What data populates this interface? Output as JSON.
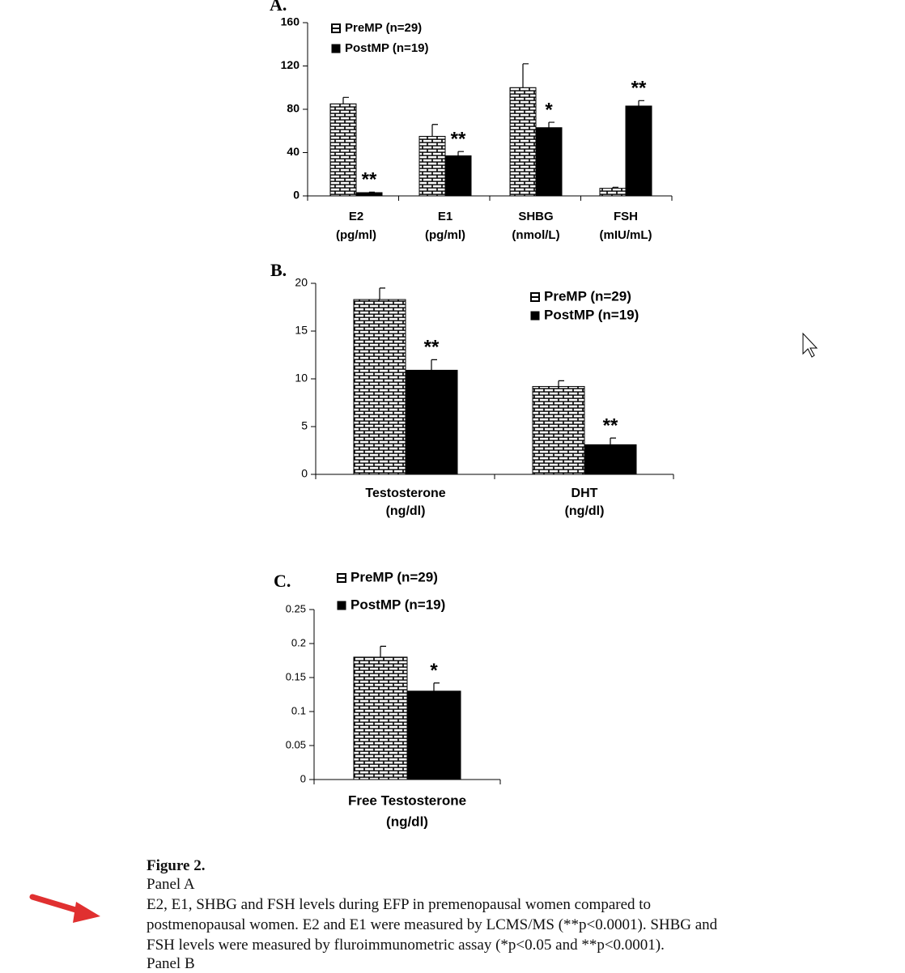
{
  "chart_data": [
    {
      "type": "bar",
      "title": "A.",
      "legend": "upper left",
      "categories": [
        [
          "E2",
          "(pg/ml)"
        ],
        [
          "E1",
          "(pg/ml)"
        ],
        [
          "SHBG",
          "(nmol/L)"
        ],
        [
          "FSH",
          "(mIU/mL)"
        ]
      ],
      "series": [
        {
          "name": "PreMP (n=29)",
          "color": "#000000",
          "pattern": "brick",
          "values": [
            85,
            55,
            100,
            7
          ],
          "errors": [
            6,
            11,
            22,
            1
          ]
        },
        {
          "name": "PostMP (n=19)",
          "color": "#000000",
          "values": [
            3,
            37,
            63,
            83
          ],
          "errors": [
            0.5,
            4,
            5,
            5
          ],
          "sig_labels": [
            "**",
            "**",
            "*",
            "**"
          ]
        }
      ],
      "ylim": [
        0,
        160
      ],
      "yticks": [
        0,
        40,
        80,
        120,
        160
      ]
    },
    {
      "type": "bar",
      "title": "B.",
      "legend": "upper right",
      "categories": [
        [
          "Testosterone",
          "(ng/dl)"
        ],
        [
          "DHT",
          "(ng/dl)"
        ]
      ],
      "series": [
        {
          "name": "PreMP (n=29)",
          "color": "#000000",
          "pattern": "brick",
          "values": [
            18.3,
            9.2
          ],
          "errors": [
            1.2,
            0.6
          ]
        },
        {
          "name": "PostMP (n=19)",
          "color": "#000000",
          "values": [
            10.9,
            3.1
          ],
          "errors": [
            1.1,
            0.7
          ],
          "sig_labels": [
            "**",
            "**"
          ]
        }
      ],
      "ylim": [
        0,
        20
      ],
      "yticks": [
        0,
        5,
        10,
        15,
        20
      ]
    },
    {
      "type": "bar",
      "title": "C.",
      "legend": "top",
      "categories": [
        [
          "Free Testosterone",
          "(ng/dl)"
        ]
      ],
      "series": [
        {
          "name": "PreMP (n=29)",
          "color": "#000000",
          "pattern": "brick",
          "values": [
            0.18
          ],
          "errors": [
            0.016
          ]
        },
        {
          "name": "PostMP (n=19)",
          "color": "#000000",
          "values": [
            0.13
          ],
          "errors": [
            0.012
          ],
          "sig_labels": [
            "*"
          ]
        }
      ],
      "ylim": [
        0,
        0.25
      ],
      "yticks": [
        0,
        0.05,
        0.1,
        0.15,
        0.2,
        0.25
      ]
    }
  ],
  "caption": {
    "figure": "Figure 2.",
    "panel": "Panel A",
    "lines": [
      "E2, E1, SHBG and FSH levels during EFP in premenopausal women compared to",
      "postmenopausal women. E2 and E1 were measured by LCMS/MS (**p<0.0001). SHBG and",
      "FSH levels were measured by fluroimmunometric assay (*p<0.05 and **p<0.0001)."
    ],
    "next_panel": "Panel B"
  }
}
